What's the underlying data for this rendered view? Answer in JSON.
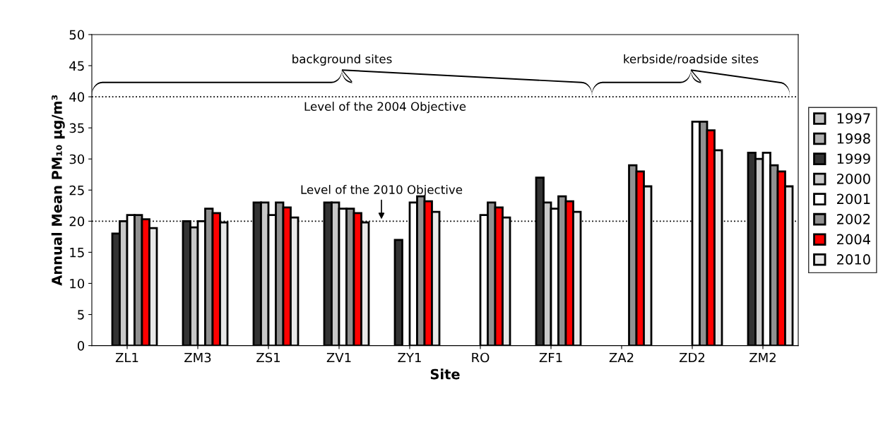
{
  "chart_data": {
    "type": "bar",
    "xlabel": "Site",
    "ylabel": "Annual Mean PM₁₀ µg/m³",
    "categories": [
      "ZL1",
      "ZM3",
      "ZS1",
      "ZV1",
      "ZY1",
      "RO",
      "ZF1",
      "ZA2",
      "ZD2",
      "ZM2"
    ],
    "series": [
      {
        "name": "1997",
        "color": "#c0c0c0",
        "values": [
          null,
          null,
          null,
          null,
          null,
          null,
          null,
          null,
          null,
          null
        ]
      },
      {
        "name": "1998",
        "color": "#b0b0b0",
        "values": [
          null,
          null,
          null,
          null,
          null,
          null,
          null,
          null,
          null,
          null
        ]
      },
      {
        "name": "1999",
        "color": "#333333",
        "values": [
          18,
          20,
          23,
          23,
          17,
          null,
          27,
          null,
          null,
          31
        ]
      },
      {
        "name": "2000",
        "color": "#c8c8c8",
        "values": [
          20,
          19,
          23,
          23,
          null,
          null,
          23,
          null,
          null,
          30
        ]
      },
      {
        "name": "2001",
        "color": "#ffffff",
        "values": [
          21,
          20,
          21,
          22,
          23,
          21,
          22,
          null,
          36,
          31
        ]
      },
      {
        "name": "2002",
        "color": "#909090",
        "values": [
          21,
          22,
          23,
          22,
          24,
          23,
          24,
          29,
          36,
          29
        ]
      },
      {
        "name": "2004",
        "color": "#ff0000",
        "values": [
          20.3,
          21.3,
          22.2,
          21.3,
          23.2,
          22.2,
          23.2,
          28,
          34.6,
          28
        ]
      },
      {
        "name": "2010",
        "color": "#e8e8e8",
        "values": [
          18.9,
          19.8,
          20.6,
          19.8,
          21.5,
          20.6,
          21.5,
          25.6,
          31.4,
          25.6
        ]
      }
    ],
    "ylim": [
      0,
      50
    ],
    "yticks": [
      0,
      5,
      10,
      15,
      20,
      25,
      30,
      35,
      40,
      45,
      50
    ],
    "ref_lines": [
      {
        "axis": "y",
        "value": 40,
        "label": "Level of the 2004 Objective",
        "line_style": "dotted",
        "color": "#000000"
      },
      {
        "axis": "y",
        "value": 20,
        "label": "Level of the 2010 Objective",
        "line_style": "dotted",
        "color": "#000000"
      }
    ],
    "annotations": [
      {
        "text": "background sites",
        "y": 40
      },
      {
        "text": "kerbside/roadside sites",
        "y": 40
      }
    ],
    "legend": "right",
    "grid": false
  }
}
